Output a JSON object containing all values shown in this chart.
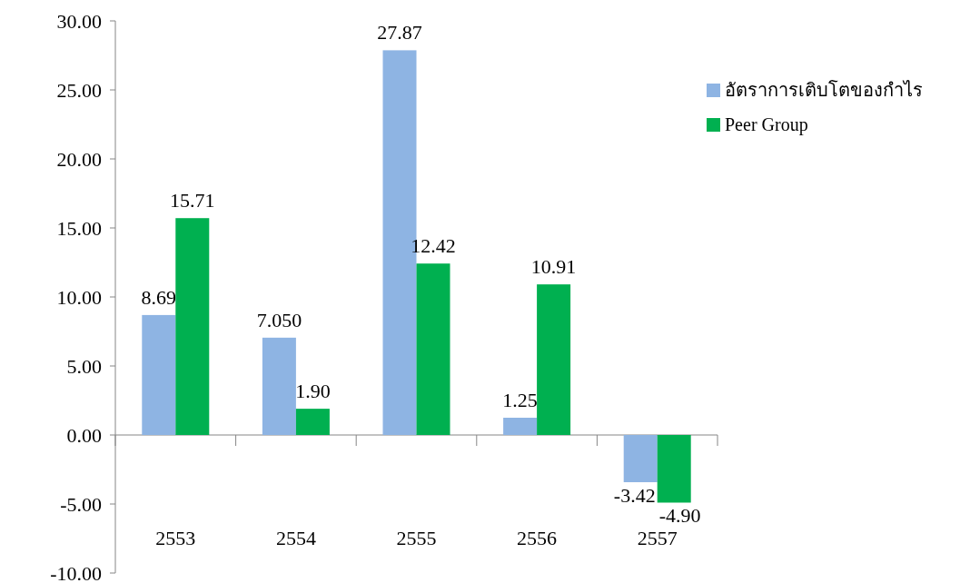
{
  "chart_data": {
    "type": "bar",
    "categories": [
      "2553",
      "2554",
      "2555",
      "2556",
      "2557"
    ],
    "series": [
      {
        "name": "อัตราการเติบโตของกำไร",
        "color": "#8eb4e3",
        "values": [
          8.69,
          7.05,
          27.87,
          1.25,
          -3.42
        ],
        "value_labels": [
          "8.69",
          "7.050",
          "27.87",
          "1.25",
          "-3.42"
        ]
      },
      {
        "name": "Peer Group",
        "color": "#00b050",
        "values": [
          15.71,
          1.9,
          12.42,
          10.91,
          -4.9
        ],
        "value_labels": [
          "15.71",
          "1.90",
          "12.42",
          "10.91",
          "-4.90"
        ]
      }
    ],
    "ylim": [
      -10,
      30
    ],
    "yticks": [
      {
        "value": 30,
        "label": "30.00"
      },
      {
        "value": 25,
        "label": "25.00"
      },
      {
        "value": 20,
        "label": "20.00"
      },
      {
        "value": 15,
        "label": "15.00"
      },
      {
        "value": 10,
        "label": "10.00"
      },
      {
        "value": 5,
        "label": "5.00"
      },
      {
        "value": 0,
        "label": "0.00"
      },
      {
        "value": -5,
        "label": "-5.00"
      },
      {
        "value": -10,
        "label": "-10.00"
      }
    ],
    "legend": "top right"
  }
}
